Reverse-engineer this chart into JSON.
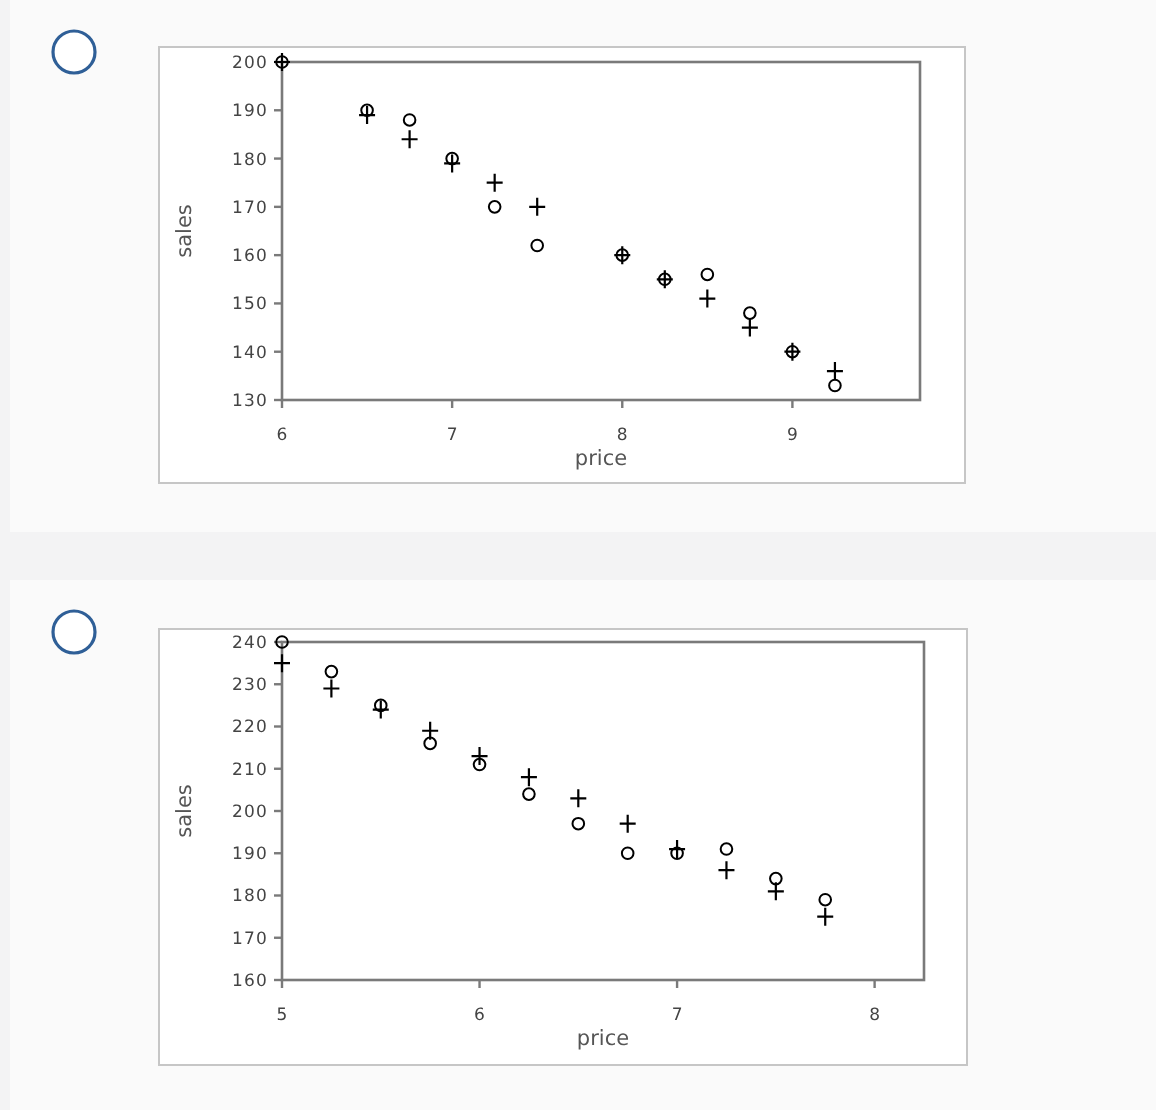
{
  "chart_data": [
    {
      "type": "scatter",
      "xlabel": "price",
      "ylabel": "sales",
      "x": [
        6,
        6.5,
        6.75,
        7,
        7.25,
        7.5,
        8,
        8.25,
        8.5,
        8.75,
        9,
        9.25
      ],
      "xlim": [
        6,
        9.75
      ],
      "xticks": [
        6,
        7,
        8,
        9
      ],
      "ylim": [
        130,
        200
      ],
      "yticks": [
        130,
        140,
        150,
        160,
        170,
        180,
        190,
        200
      ],
      "series": [
        {
          "color": "#000000",
          "marker": "circle",
          "values": [
            200,
            190,
            188,
            180,
            170,
            162,
            160,
            155,
            156,
            148,
            140,
            133
          ]
        },
        {
          "color": "#000000",
          "marker": "cross",
          "values": [
            200,
            189,
            184,
            179,
            175,
            170,
            160,
            155,
            151,
            145,
            140,
            136
          ]
        }
      ]
    },
    {
      "type": "scatter",
      "xlabel": "price",
      "ylabel": "sales",
      "x": [
        5,
        5.25,
        5.5,
        5.75,
        6,
        6.25,
        6.5,
        6.75,
        7,
        7.25,
        7.5,
        7.75
      ],
      "xlim": [
        5,
        8.25
      ],
      "xticks": [
        5,
        6,
        7,
        8
      ],
      "ylim": [
        160,
        240
      ],
      "yticks": [
        160,
        170,
        180,
        190,
        200,
        210,
        220,
        230,
        240
      ],
      "series": [
        {
          "color": "#000000",
          "marker": "circle",
          "values": [
            240,
            233,
            225,
            216,
            211,
            204,
            197,
            190,
            190,
            191,
            184,
            179
          ]
        },
        {
          "color": "#000000",
          "marker": "cross",
          "values": [
            235,
            229,
            224,
            219,
            213,
            208,
            203,
            197,
            191,
            186,
            181,
            175
          ]
        }
      ]
    }
  ]
}
